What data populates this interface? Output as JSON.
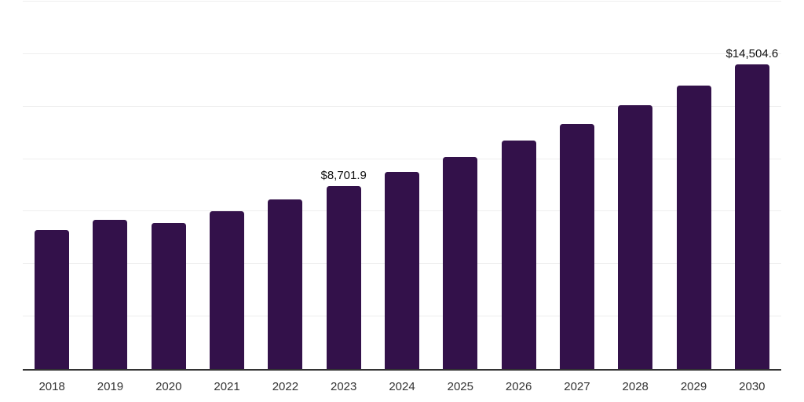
{
  "chart_data": {
    "type": "bar",
    "title": "",
    "xlabel": "",
    "ylabel": "",
    "categories": [
      "2018",
      "2019",
      "2020",
      "2021",
      "2022",
      "2023",
      "2024",
      "2025",
      "2026",
      "2027",
      "2028",
      "2029",
      "2030"
    ],
    "values": [
      6610,
      7100,
      6940,
      7500,
      8060,
      8701.9,
      9390,
      10090,
      10870,
      11670,
      12560,
      13500,
      14504.6
    ],
    "bar_value_labels": [
      "",
      "",
      "",
      "",
      "",
      "$8,701.9",
      "",
      "",
      "",
      "",
      "",
      "",
      "$14,504.6"
    ],
    "ylim": [
      0,
      17500
    ],
    "gridline_interval": 2500,
    "grid": true,
    "legend": false,
    "colors": {
      "bar": "#33114a",
      "gridline": "#eeeeee",
      "axis_line": "#333333",
      "tick_label": "#333333",
      "value_label": "#111111",
      "background": "#ffffff"
    }
  }
}
